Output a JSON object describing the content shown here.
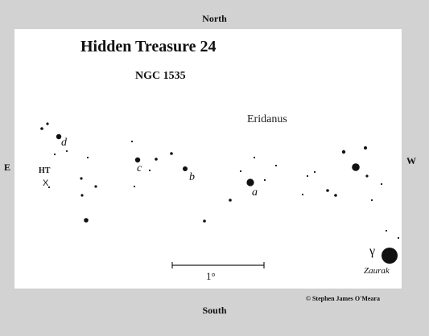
{
  "compass": {
    "north": "North",
    "south": "South",
    "east": "E",
    "west": "W"
  },
  "chart": {
    "title": "Hidden Treasure 24",
    "subtitle": "NGC 1535",
    "constellation": "Eridanus",
    "target_label": "HT",
    "target_marker": "X",
    "star_labels": {
      "a": "a",
      "b": "b",
      "c": "c",
      "d": "d"
    },
    "bright_star": {
      "greek": "γ",
      "name": "Zaurak"
    },
    "scale_label": "1°"
  },
  "credit": "© Stephen James O'Meara",
  "colors": {
    "background": "#d2d2d2",
    "panel": "#ffffff",
    "ink": "#111111"
  }
}
